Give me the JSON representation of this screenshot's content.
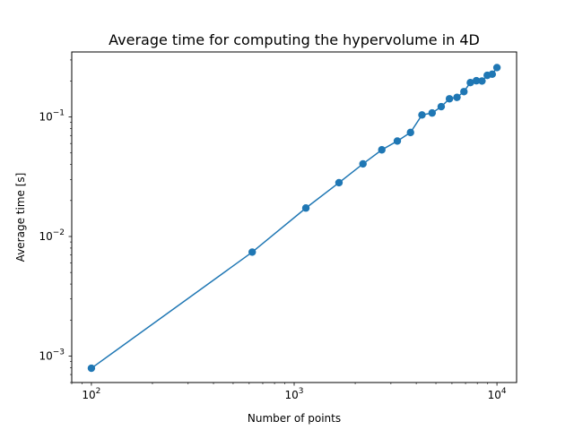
{
  "chart_data": {
    "type": "line",
    "title": "Average time for computing the hypervolume in 4D",
    "xlabel": "Number of points",
    "ylabel": "Average time [s]",
    "xscale": "log",
    "yscale": "log",
    "xlim": [
      80,
      12500
    ],
    "ylim": [
      0.0006,
      0.35
    ],
    "grid": false,
    "x_major_ticks": [
      {
        "value": 100,
        "base": "10",
        "exp": "2"
      },
      {
        "value": 1000,
        "base": "10",
        "exp": "3"
      },
      {
        "value": 10000,
        "base": "10",
        "exp": "4"
      }
    ],
    "y_major_ticks": [
      {
        "value": 0.001,
        "base": "10",
        "exp": "−3"
      },
      {
        "value": 0.01,
        "base": "10",
        "exp": "−2"
      },
      {
        "value": 0.1,
        "base": "10",
        "exp": "−1"
      }
    ],
    "series": [
      {
        "color": "#1f77b4",
        "marker": "circle",
        "x": [
          100,
          621,
          1142,
          1663,
          2184,
          2705,
          3226,
          3747,
          4268,
          4789,
          5310,
          5831,
          6352,
          6873,
          7394,
          7915,
          8436,
          8957,
          9478,
          10000
        ],
        "y": [
          0.00079,
          0.0074,
          0.0173,
          0.0282,
          0.0405,
          0.0531,
          0.0629,
          0.0742,
          0.104,
          0.108,
          0.122,
          0.142,
          0.146,
          0.163,
          0.194,
          0.201,
          0.2,
          0.223,
          0.228,
          0.259
        ]
      }
    ]
  }
}
